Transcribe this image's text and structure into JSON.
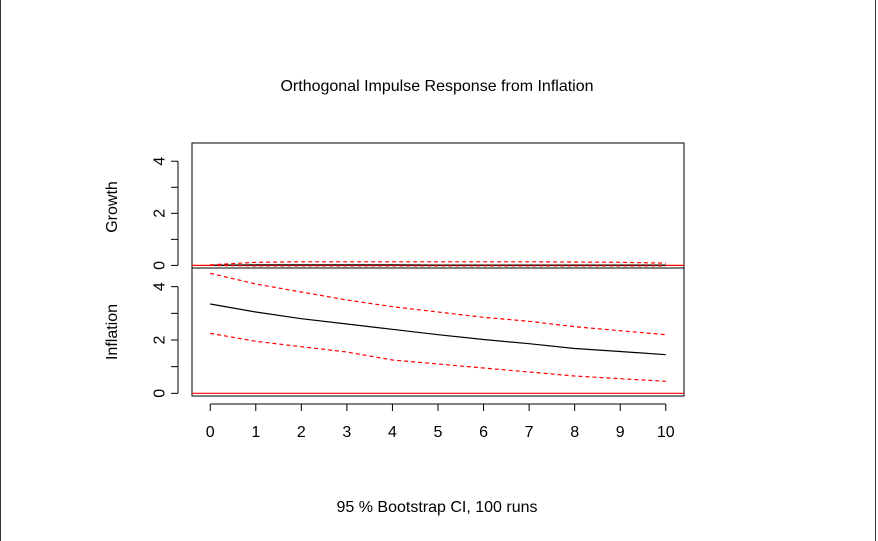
{
  "chart_data": {
    "type": "line",
    "title": "Orthogonal Impulse Response from Inflation",
    "subtitle": "95 % Bootstrap CI,  100 runs",
    "x": [
      0,
      1,
      2,
      3,
      4,
      5,
      6,
      7,
      8,
      9,
      10
    ],
    "xticks": [
      "0",
      "1",
      "2",
      "3",
      "4",
      "5",
      "6",
      "7",
      "8",
      "9",
      "10"
    ],
    "xlim": [
      -0.4,
      10.4
    ],
    "panels": [
      {
        "ylabel": "Growth",
        "ylim": [
          -0.1,
          4.7
        ],
        "yticks": [
          "0",
          "2",
          "4"
        ],
        "zero_line_color": "#ff0000",
        "series": [
          {
            "role": "response",
            "color": "#000000",
            "style": "solid",
            "values": [
              0.0,
              0.02,
              0.02,
              0.02,
              0.02,
              0.01,
              0.01,
              0.01,
              0.01,
              0.01,
              0.01
            ]
          },
          {
            "role": "upper",
            "color": "#ff0000",
            "style": "dashed",
            "values": [
              0.02,
              0.12,
              0.14,
              0.14,
              0.14,
              0.14,
              0.14,
              0.14,
              0.13,
              0.12,
              0.09
            ]
          },
          {
            "role": "lower",
            "color": "#ff0000",
            "style": "dashed",
            "values": [
              0.0,
              -0.02,
              -0.02,
              -0.02,
              -0.02,
              -0.02,
              -0.02,
              -0.02,
              -0.02,
              -0.02,
              -0.02
            ]
          }
        ]
      },
      {
        "ylabel": "Inflation",
        "ylim": [
          -0.1,
          4.7
        ],
        "yticks": [
          "0",
          "2",
          "4"
        ],
        "zero_line_color": "#ff0000",
        "series": [
          {
            "role": "response",
            "color": "#000000",
            "style": "solid",
            "values": [
              3.35,
              3.05,
              2.8,
              2.6,
              2.4,
              2.2,
              2.02,
              1.86,
              1.68,
              1.57,
              1.45
            ]
          },
          {
            "role": "upper",
            "color": "#ff0000",
            "style": "dashed",
            "values": [
              4.5,
              4.1,
              3.8,
              3.5,
              3.25,
              3.05,
              2.85,
              2.7,
              2.5,
              2.35,
              2.2
            ]
          },
          {
            "role": "lower",
            "color": "#ff0000",
            "style": "dashed",
            "values": [
              2.25,
              1.95,
              1.75,
              1.55,
              1.25,
              1.1,
              0.95,
              0.8,
              0.65,
              0.55,
              0.45
            ]
          }
        ]
      }
    ]
  }
}
